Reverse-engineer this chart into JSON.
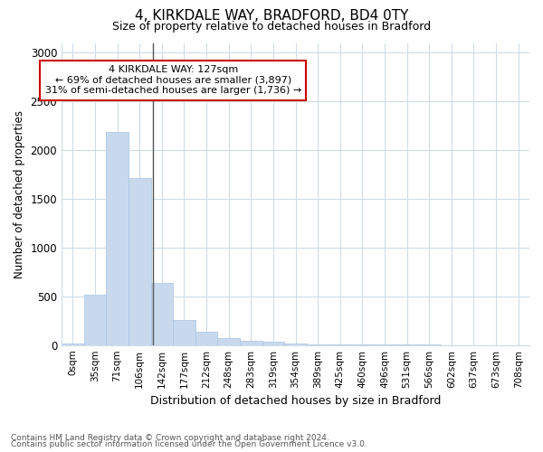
{
  "title1": "4, KIRKDALE WAY, BRADFORD, BD4 0TY",
  "title2": "Size of property relative to detached houses in Bradford",
  "xlabel": "Distribution of detached houses by size in Bradford",
  "ylabel": "Number of detached properties",
  "annotation_line1": "4 KIRKDALE WAY: 127sqm",
  "annotation_line2": "← 69% of detached houses are smaller (3,897)",
  "annotation_line3": "31% of semi-detached houses are larger (1,736) →",
  "bar_color": "#c8d9ee",
  "bar_edge_color": "#a8c4e0",
  "annotation_box_edge": "#cc0000",
  "property_line_color": "#555555",
  "categories": [
    "0sqm",
    "35sqm",
    "71sqm",
    "106sqm",
    "142sqm",
    "177sqm",
    "212sqm",
    "248sqm",
    "283sqm",
    "319sqm",
    "354sqm",
    "389sqm",
    "425sqm",
    "460sqm",
    "496sqm",
    "531sqm",
    "566sqm",
    "602sqm",
    "637sqm",
    "673sqm",
    "708sqm"
  ],
  "values": [
    20,
    520,
    2185,
    1710,
    635,
    260,
    135,
    75,
    45,
    30,
    20,
    10,
    8,
    6,
    4,
    3,
    2,
    1,
    1,
    0,
    0
  ],
  "ylim": [
    0,
    3100
  ],
  "yticks": [
    0,
    500,
    1000,
    1500,
    2000,
    2500,
    3000
  ],
  "footnote1": "Contains HM Land Registry data © Crown copyright and database right 2024.",
  "footnote2": "Contains public sector information licensed under the Open Government Licence v3.0.",
  "background_color": "#ffffff",
  "plot_background": "#ffffff",
  "grid_color": "#d0dce8"
}
